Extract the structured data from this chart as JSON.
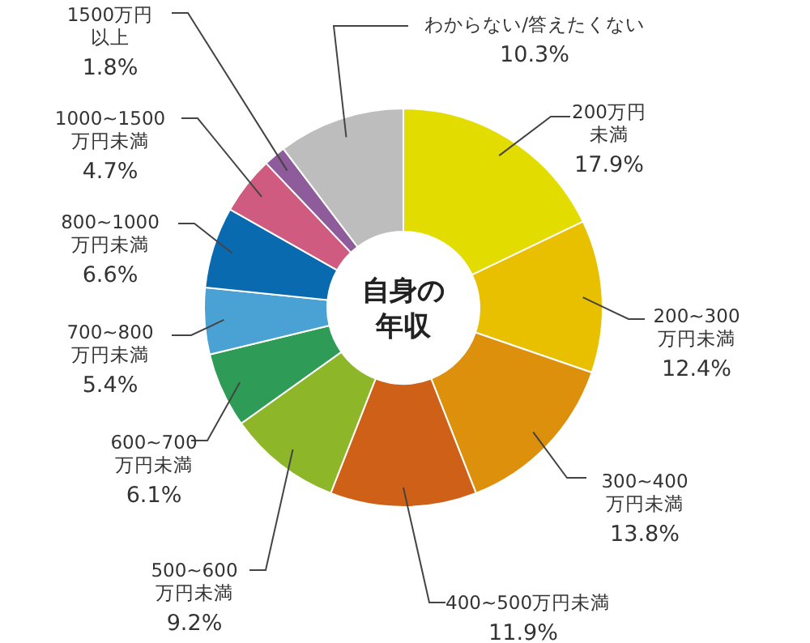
{
  "chart_data": {
    "type": "donut",
    "title": "自身の年収",
    "categories": [
      "200万円未満",
      "200~300万円未満",
      "300~400万円未満",
      "400~500万円未満",
      "500~600万円未満",
      "600~700万円未満",
      "700~800万円未満",
      "800~1000万円未満",
      "1000~1500万円未満",
      "1500万円以上",
      "わからない/答えたくない"
    ],
    "values": [
      17.9,
      12.4,
      13.8,
      11.9,
      9.2,
      6.1,
      5.4,
      6.6,
      4.7,
      1.8,
      10.3
    ],
    "value_labels": [
      "17.9%",
      "12.4%",
      "13.8%",
      "11.9%",
      "9.2%",
      "6.1%",
      "5.4%",
      "6.6%",
      "4.7%",
      "1.8%",
      "10.3%"
    ],
    "colors": [
      "#e3dc00",
      "#e8c000",
      "#dc900c",
      "#cf6018",
      "#8db728",
      "#2e9b56",
      "#4aa1d3",
      "#0a6aaf",
      "#d05b80",
      "#8e5b9b",
      "#bdbdbd"
    ]
  }
}
